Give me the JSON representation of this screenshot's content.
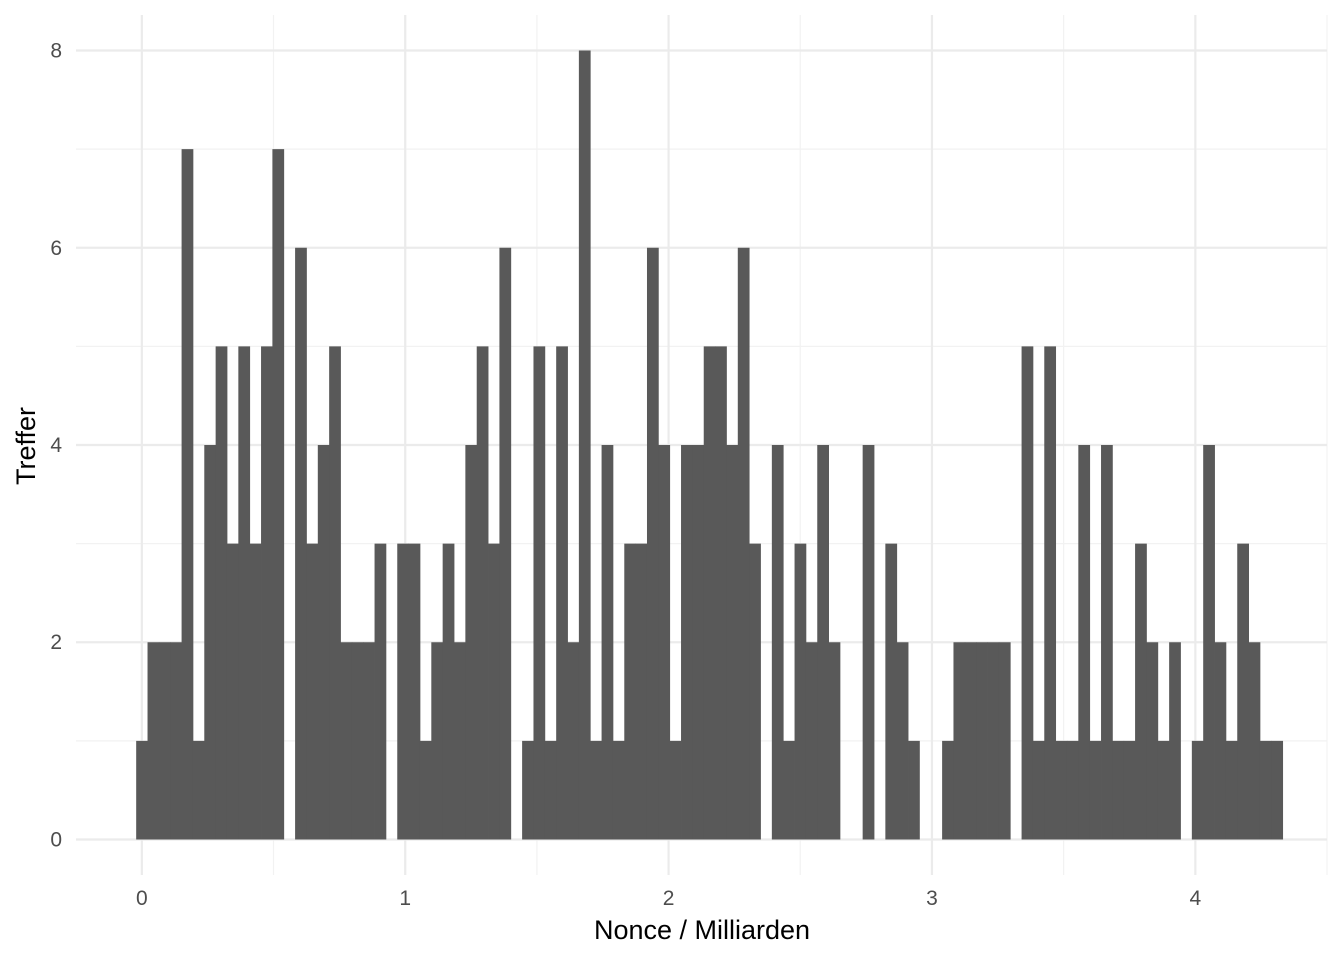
{
  "chart_data": {
    "type": "bar",
    "subtype": "histogram",
    "xlabel": "Nonce / Milliarden",
    "ylabel": "Treffer",
    "xlim": [
      -0.25,
      4.5
    ],
    "ylim": [
      -0.36,
      8.36
    ],
    "x_ticks": [
      0,
      1,
      2,
      3,
      4
    ],
    "y_ticks": [
      0,
      2,
      4,
      6,
      8
    ],
    "x_minor_ticks": [
      0.5,
      1.5,
      2.5,
      3.5,
      4.5
    ],
    "y_minor_ticks": [
      1,
      3,
      5,
      7
    ],
    "grid": true,
    "bin_start": -0.0215,
    "bin_width": 0.0431,
    "counts": [
      1,
      2,
      2,
      2,
      7,
      1,
      4,
      5,
      3,
      5,
      3,
      5,
      7,
      0,
      6,
      3,
      4,
      5,
      2,
      2,
      2,
      3,
      0,
      3,
      3,
      1,
      2,
      3,
      2,
      4,
      5,
      3,
      6,
      0,
      1,
      5,
      1,
      5,
      2,
      8,
      1,
      4,
      1,
      3,
      3,
      6,
      4,
      1,
      4,
      4,
      5,
      5,
      4,
      6,
      3,
      0,
      4,
      1,
      3,
      2,
      4,
      2,
      0,
      0,
      4,
      0,
      3,
      2,
      1,
      0,
      0,
      1,
      2,
      2,
      2,
      2,
      2,
      0,
      5,
      1,
      5,
      1,
      1,
      4,
      1,
      4,
      1,
      1,
      3,
      2,
      1,
      2,
      0,
      1,
      4,
      2,
      1,
      3,
      2,
      1,
      1
    ],
    "colors": {
      "bar": "#595959",
      "grid": "#ebebeb",
      "background": "#ffffff"
    }
  }
}
